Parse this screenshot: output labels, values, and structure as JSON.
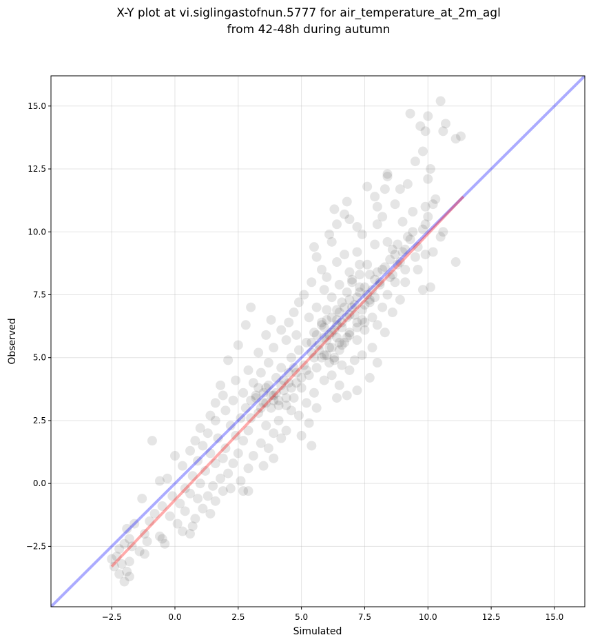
{
  "chart_data": {
    "type": "scatter",
    "title_line1": "X-Y plot at vi.siglingastofnun.5777 for air_temperature_at_2m_agl",
    "title_line2": "from 42-48h during autumn",
    "xlabel": "Simulated",
    "ylabel": "Observed",
    "xlim": [
      -4.9,
      16.2
    ],
    "ylim": [
      -4.9,
      16.2
    ],
    "xticks": [
      -2.5,
      0.0,
      2.5,
      5.0,
      7.5,
      10.0,
      12.5,
      15.0
    ],
    "yticks": [
      -2.5,
      0.0,
      2.5,
      5.0,
      7.5,
      10.0,
      12.5,
      15.0
    ],
    "xtick_labels": [
      "−2.5",
      "0.0",
      "2.5",
      "5.0",
      "7.5",
      "10.0",
      "12.5",
      "15.0"
    ],
    "ytick_labels": [
      "−2.5",
      "0.0",
      "2.5",
      "5.0",
      "7.5",
      "10.0",
      "12.5",
      "15.0"
    ],
    "grid": true,
    "point_color": "#000000",
    "point_alpha": 0.1,
    "identity_line": {
      "color": "#0000ff",
      "alpha": 0.33,
      "x": [
        -4.9,
        16.2
      ],
      "y": [
        -4.9,
        16.2
      ]
    },
    "fit_line": {
      "color": "#ff0000",
      "alpha": 0.33,
      "x": [
        -2.5,
        11.4
      ],
      "y": [
        -3.3,
        11.4
      ]
    },
    "points": [
      [
        10.5,
        15.2
      ],
      [
        9.3,
        14.7
      ],
      [
        10.0,
        14.6
      ],
      [
        10.7,
        14.3
      ],
      [
        9.7,
        14.2
      ],
      [
        10.6,
        14.0
      ],
      [
        9.9,
        14.0
      ],
      [
        11.3,
        13.8
      ],
      [
        11.1,
        13.7
      ],
      [
        9.8,
        13.2
      ],
      [
        9.5,
        12.8
      ],
      [
        10.1,
        12.5
      ],
      [
        8.4,
        12.3
      ],
      [
        8.4,
        12.2
      ],
      [
        10.0,
        12.1
      ],
      [
        9.2,
        11.9
      ],
      [
        7.6,
        11.8
      ],
      [
        8.3,
        11.7
      ],
      [
        8.9,
        11.7
      ],
      [
        7.9,
        11.4
      ],
      [
        10.3,
        11.3
      ],
      [
        10.2,
        11.1
      ],
      [
        6.8,
        11.2
      ],
      [
        8.7,
        11.1
      ],
      [
        9.9,
        11.0
      ],
      [
        8.0,
        11.0
      ],
      [
        6.3,
        10.9
      ],
      [
        9.4,
        10.8
      ],
      [
        6.7,
        10.7
      ],
      [
        8.2,
        10.6
      ],
      [
        10.0,
        10.6
      ],
      [
        6.9,
        10.5
      ],
      [
        9.0,
        10.4
      ],
      [
        9.9,
        10.3
      ],
      [
        8.0,
        10.3
      ],
      [
        6.4,
        10.3
      ],
      [
        7.2,
        10.2
      ],
      [
        10.6,
        10.0
      ],
      [
        6.1,
        9.9
      ],
      [
        7.4,
        9.9
      ],
      [
        10.5,
        9.8
      ],
      [
        9.3,
        9.7
      ],
      [
        5.5,
        9.4
      ],
      [
        6.2,
        9.6
      ],
      [
        7.9,
        9.5
      ],
      [
        9.1,
        9.3
      ],
      [
        8.6,
        9.3
      ],
      [
        7.2,
        9.2
      ],
      [
        6.7,
        9.1
      ],
      [
        5.6,
        9.0
      ],
      [
        10.2,
        9.2
      ],
      [
        9.9,
        9.1
      ],
      [
        11.1,
        8.8
      ],
      [
        6.4,
        8.8
      ],
      [
        7.3,
        8.7
      ],
      [
        8.8,
        8.7
      ],
      [
        5.8,
        8.5
      ],
      [
        9.6,
        8.5
      ],
      [
        6.9,
        8.4
      ],
      [
        7.7,
        8.3
      ],
      [
        6.0,
        8.2
      ],
      [
        8.5,
        8.2
      ],
      [
        7.0,
        8.1
      ],
      [
        5.4,
        8.0
      ],
      [
        9.1,
        8.0
      ],
      [
        6.5,
        7.9
      ],
      [
        8.1,
        7.9
      ],
      [
        10.1,
        7.8
      ],
      [
        7.5,
        7.8
      ],
      [
        5.9,
        7.7
      ],
      [
        9.8,
        7.7
      ],
      [
        6.8,
        7.6
      ],
      [
        7.3,
        7.6
      ],
      [
        8.4,
        7.5
      ],
      [
        5.1,
        7.5
      ],
      [
        6.2,
        7.4
      ],
      [
        7.7,
        7.3
      ],
      [
        8.9,
        7.3
      ],
      [
        4.9,
        7.2
      ],
      [
        6.6,
        7.2
      ],
      [
        7.1,
        7.1
      ],
      [
        5.6,
        7.0
      ],
      [
        3.0,
        7.0
      ],
      [
        8.2,
        7.0
      ],
      [
        6.0,
        6.9
      ],
      [
        7.4,
        6.9
      ],
      [
        8.6,
        6.8
      ],
      [
        4.7,
        6.8
      ],
      [
        6.9,
        6.7
      ],
      [
        5.3,
        6.6
      ],
      [
        7.8,
        6.6
      ],
      [
        6.4,
        6.5
      ],
      [
        3.8,
        6.5
      ],
      [
        4.5,
        6.4
      ],
      [
        7.2,
        6.4
      ],
      [
        8.0,
        6.3
      ],
      [
        2.8,
        6.3
      ],
      [
        5.8,
        6.3
      ],
      [
        6.6,
        6.2
      ],
      [
        4.2,
        6.1
      ],
      [
        7.5,
        6.1
      ],
      [
        5.5,
        6.0
      ],
      [
        6.2,
        6.0
      ],
      [
        8.3,
        6.0
      ],
      [
        4.8,
        5.9
      ],
      [
        6.9,
        5.9
      ],
      [
        3.6,
        5.9
      ],
      [
        5.9,
        5.8
      ],
      [
        6.4,
        5.8
      ],
      [
        7.2,
        5.7
      ],
      [
        4.4,
        5.7
      ],
      [
        5.2,
        5.6
      ],
      [
        6.7,
        5.6
      ],
      [
        2.5,
        5.5
      ],
      [
        5.7,
        5.5
      ],
      [
        6.1,
        5.4
      ],
      [
        7.8,
        5.4
      ],
      [
        3.9,
        5.4
      ],
      [
        4.9,
        5.3
      ],
      [
        6.5,
        5.3
      ],
      [
        5.4,
        5.2
      ],
      [
        3.3,
        5.2
      ],
      [
        6.0,
        5.1
      ],
      [
        7.4,
        5.1
      ],
      [
        4.6,
        5.0
      ],
      [
        5.8,
        5.0
      ],
      [
        6.3,
        4.9
      ],
      [
        2.1,
        4.9
      ],
      [
        7.1,
        4.9
      ],
      [
        3.7,
        4.8
      ],
      [
        8.0,
        4.8
      ],
      [
        5.1,
        4.7
      ],
      [
        6.6,
        4.7
      ],
      [
        4.2,
        4.6
      ],
      [
        5.6,
        4.6
      ],
      [
        2.9,
        4.5
      ],
      [
        6.9,
        4.5
      ],
      [
        4.8,
        4.4
      ],
      [
        3.4,
        4.4
      ],
      [
        6.2,
        4.3
      ],
      [
        5.3,
        4.3
      ],
      [
        7.7,
        4.2
      ],
      [
        4.0,
        4.2
      ],
      [
        2.4,
        4.1
      ],
      [
        5.9,
        4.1
      ],
      [
        3.1,
        4.0
      ],
      [
        4.5,
        4.0
      ],
      [
        6.5,
        3.9
      ],
      [
        1.8,
        3.9
      ],
      [
        5.0,
        3.8
      ],
      [
        3.6,
        3.8
      ],
      [
        7.2,
        3.7
      ],
      [
        4.3,
        3.7
      ],
      [
        2.7,
        3.6
      ],
      [
        5.5,
        3.6
      ],
      [
        1.9,
        3.5
      ],
      [
        3.9,
        3.5
      ],
      [
        6.8,
        3.5
      ],
      [
        4.7,
        3.4
      ],
      [
        3.2,
        3.4
      ],
      [
        6.4,
        3.4
      ],
      [
        2.3,
        3.3
      ],
      [
        4.1,
        3.3
      ],
      [
        5.2,
        3.2
      ],
      [
        1.6,
        3.2
      ],
      [
        3.5,
        3.2
      ],
      [
        4.4,
        3.1
      ],
      [
        2.8,
        3.0
      ],
      [
        3.8,
        3.0
      ],
      [
        5.6,
        3.0
      ],
      [
        2.0,
        2.9
      ],
      [
        4.6,
        2.9
      ],
      [
        3.3,
        2.8
      ],
      [
        1.4,
        2.7
      ],
      [
        4.9,
        2.7
      ],
      [
        2.6,
        2.6
      ],
      [
        3.0,
        2.6
      ],
      [
        1.6,
        2.5
      ],
      [
        4.1,
        2.5
      ],
      [
        5.3,
        2.4
      ],
      [
        2.2,
        2.3
      ],
      [
        3.6,
        2.3
      ],
      [
        1.0,
        2.2
      ],
      [
        2.9,
        2.1
      ],
      [
        4.4,
        2.1
      ],
      [
        1.3,
        2.0
      ],
      [
        3.9,
        2.0
      ],
      [
        2.4,
        1.9
      ],
      [
        5.0,
        1.9
      ],
      [
        1.7,
        1.8
      ],
      [
        4.2,
        1.8
      ],
      [
        0.8,
        1.7
      ],
      [
        2.7,
        1.7
      ],
      [
        -0.9,
        1.7
      ],
      [
        3.4,
        1.6
      ],
      [
        1.1,
        1.5
      ],
      [
        5.4,
        1.5
      ],
      [
        2.0,
        1.4
      ],
      [
        3.7,
        1.4
      ],
      [
        0.6,
        1.3
      ],
      [
        2.5,
        1.2
      ],
      [
        1.4,
        1.2
      ],
      [
        0.0,
        1.1
      ],
      [
        3.1,
        1.1
      ],
      [
        1.9,
        1.0
      ],
      [
        3.9,
        1.0
      ],
      [
        0.9,
        0.9
      ],
      [
        2.3,
        0.8
      ],
      [
        1.6,
        0.8
      ],
      [
        0.3,
        0.7
      ],
      [
        3.5,
        0.7
      ],
      [
        2.9,
        0.6
      ],
      [
        1.2,
        0.5
      ],
      [
        2.1,
        0.4
      ],
      [
        0.7,
        0.3
      ],
      [
        1.8,
        0.2
      ],
      [
        -0.3,
        0.2
      ],
      [
        2.6,
        0.1
      ],
      [
        -0.6,
        0.1
      ],
      [
        1.0,
        0.0
      ],
      [
        1.5,
        -0.1
      ],
      [
        2.2,
        -0.2
      ],
      [
        0.4,
        -0.2
      ],
      [
        1.9,
        -0.3
      ],
      [
        2.7,
        -0.3
      ],
      [
        2.9,
        -0.3
      ],
      [
        0.6,
        -0.4
      ],
      [
        1.3,
        -0.5
      ],
      [
        -0.1,
        -0.5
      ],
      [
        0.9,
        -0.6
      ],
      [
        -1.3,
        -0.6
      ],
      [
        1.6,
        -0.7
      ],
      [
        0.2,
        -0.8
      ],
      [
        -0.5,
        -0.9
      ],
      [
        1.1,
        -1.0
      ],
      [
        0.4,
        -1.1
      ],
      [
        -0.8,
        -1.2
      ],
      [
        1.4,
        -1.2
      ],
      [
        -0.2,
        -1.3
      ],
      [
        0.8,
        -1.4
      ],
      [
        -1.0,
        -1.5
      ],
      [
        0.1,
        -1.6
      ],
      [
        -1.6,
        -1.6
      ],
      [
        0.7,
        -1.7
      ],
      [
        -1.9,
        -1.8
      ],
      [
        0.3,
        -1.9
      ],
      [
        -1.2,
        -2.0
      ],
      [
        0.6,
        -2.0
      ],
      [
        -0.6,
        -2.1
      ],
      [
        -1.8,
        -2.2
      ],
      [
        -0.5,
        -2.2
      ],
      [
        -1.1,
        -2.3
      ],
      [
        -2.0,
        -2.4
      ],
      [
        -0.4,
        -2.4
      ],
      [
        -1.7,
        -2.5
      ],
      [
        -2.2,
        -2.6
      ],
      [
        -1.4,
        -2.7
      ],
      [
        -1.2,
        -2.8
      ],
      [
        -2.3,
        -2.9
      ],
      [
        -2.5,
        -3.0
      ],
      [
        -1.8,
        -3.1
      ],
      [
        -2.1,
        -3.2
      ],
      [
        -2.4,
        -3.3
      ],
      [
        -1.9,
        -3.5
      ],
      [
        -2.2,
        -3.6
      ],
      [
        -1.8,
        -3.7
      ],
      [
        -2.0,
        -3.9
      ],
      [
        7.0,
        7.0
      ],
      [
        7.2,
        7.4
      ],
      [
        6.8,
        6.6
      ],
      [
        7.5,
        7.1
      ],
      [
        6.5,
        6.8
      ],
      [
        7.8,
        7.7
      ],
      [
        6.3,
        6.1
      ],
      [
        7.1,
        6.7
      ],
      [
        6.9,
        7.3
      ],
      [
        7.4,
        6.5
      ],
      [
        6.6,
        6.4
      ],
      [
        7.7,
        7.2
      ],
      [
        6.2,
        6.6
      ],
      [
        7.3,
        7.8
      ],
      [
        6.0,
        5.7
      ],
      [
        6.4,
        6.3
      ],
      [
        7.6,
        7.5
      ],
      [
        6.1,
        5.9
      ],
      [
        5.9,
        6.2
      ],
      [
        6.7,
        7.0
      ],
      [
        7.9,
        8.1
      ],
      [
        8.2,
        8.5
      ],
      [
        8.0,
        8.4
      ],
      [
        8.5,
        8.9
      ],
      [
        8.7,
        9.1
      ],
      [
        8.3,
        8.6
      ],
      [
        7.9,
        7.4
      ],
      [
        8.1,
        8.0
      ],
      [
        8.6,
        8.3
      ],
      [
        9.0,
        9.2
      ],
      [
        6.5,
        5.6
      ],
      [
        6.2,
        5.4
      ],
      [
        6.8,
        5.8
      ],
      [
        5.8,
        6.4
      ],
      [
        6.0,
        6.5
      ],
      [
        6.4,
        6.9
      ],
      [
        6.6,
        5.5
      ],
      [
        6.9,
        6.0
      ],
      [
        7.2,
        6.2
      ],
      [
        7.5,
        6.4
      ],
      [
        5.6,
        5.9
      ],
      [
        5.4,
        5.6
      ],
      [
        5.7,
        5.3
      ],
      [
        6.3,
        5.0
      ],
      [
        5.9,
        5.1
      ],
      [
        6.1,
        4.8
      ],
      [
        5.5,
        5.0
      ],
      [
        7.3,
        8.3
      ],
      [
        7.6,
        8.7
      ],
      [
        7.0,
        8.0
      ],
      [
        3.8,
        3.5
      ],
      [
        4.0,
        3.6
      ],
      [
        3.6,
        3.2
      ],
      [
        4.2,
        3.9
      ],
      [
        3.9,
        3.3
      ],
      [
        4.3,
        4.1
      ],
      [
        3.7,
        3.9
      ],
      [
        4.1,
        3.1
      ],
      [
        3.5,
        3.6
      ],
      [
        4.4,
        3.4
      ],
      [
        4.6,
        3.8
      ],
      [
        4.8,
        4.0
      ],
      [
        3.4,
        3.0
      ],
      [
        3.2,
        3.5
      ],
      [
        4.5,
        4.4
      ],
      [
        4.7,
        4.6
      ],
      [
        5.0,
        4.2
      ],
      [
        5.2,
        4.5
      ],
      [
        3.3,
        3.8
      ],
      [
        3.0,
        3.3
      ],
      [
        8.8,
        9.5
      ],
      [
        9.2,
        9.8
      ],
      [
        9.4,
        10.0
      ],
      [
        8.9,
        8.8
      ],
      [
        9.6,
        9.4
      ],
      [
        9.1,
        8.5
      ],
      [
        8.4,
        9.6
      ],
      [
        9.8,
        10.1
      ],
      [
        9.5,
        9.0
      ],
      [
        8.7,
        8.0
      ]
    ]
  }
}
